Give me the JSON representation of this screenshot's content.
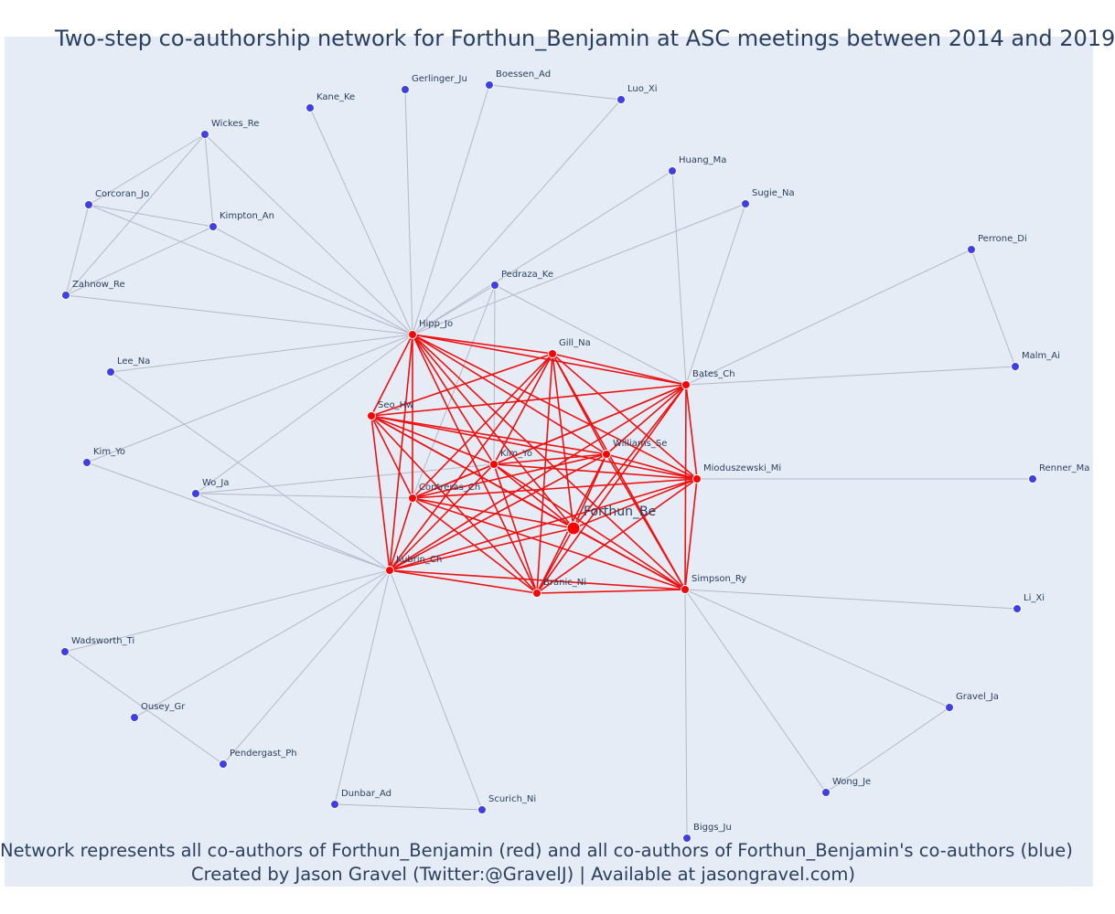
{
  "title": "Two-step co-authorship network for Forthun_Benjamin at ASC meetings between 2014 and 2019",
  "caption": {
    "line1": "Network represents all co-authors of Forthun_Benjamin (red) and all co-authors of Forthun_Benjamin's co-authors (blue)",
    "line2": "Created by Jason Gravel (Twitter:@GravelJ) | Available at jasongravel.com)"
  },
  "colors": {
    "focal": "#ff0000",
    "coauthor": "#ff0000",
    "second_step": "#3f3fe6",
    "red_edge": "#ee1111",
    "grey_edge": "#b4b8c8",
    "background": "#e5ecf6",
    "text": "#2a3f5f"
  },
  "chart_data": {
    "type": "network",
    "nodes": [
      {
        "id": "Forthun_Be",
        "label": "Forthun_Be",
        "group": "focal"
      },
      {
        "id": "Hipp_Jo",
        "label": "Hipp_Jo",
        "group": "coauthor"
      },
      {
        "id": "Gill_Na",
        "label": "Gill_Na",
        "group": "coauthor"
      },
      {
        "id": "Bates_Ch",
        "label": "Bates_Ch",
        "group": "coauthor"
      },
      {
        "id": "Seo_Hw",
        "label": "Seo_Hw",
        "group": "coauthor"
      },
      {
        "id": "Williams_Se",
        "label": "Williams_Se",
        "group": "coauthor"
      },
      {
        "id": "Kim_Yo_red",
        "label": "Kim_Yo",
        "group": "coauthor"
      },
      {
        "id": "Mioduszewski_Mi",
        "label": "Mioduszewski_Mi",
        "group": "coauthor"
      },
      {
        "id": "Contreras_Ch",
        "label": "Contreras_Ch",
        "group": "coauthor"
      },
      {
        "id": "Kubrin_Ch",
        "label": "Kubrin_Ch",
        "group": "coauthor"
      },
      {
        "id": "Branic_Ni",
        "label": "Branic_Ni",
        "group": "coauthor"
      },
      {
        "id": "Simpson_Ry",
        "label": "Simpson_Ry",
        "group": "coauthor"
      },
      {
        "id": "Kane_Ke",
        "label": "Kane_Ke",
        "group": "second"
      },
      {
        "id": "Gerlinger_Ju",
        "label": "Gerlinger_Ju",
        "group": "second"
      },
      {
        "id": "Boessen_Ad",
        "label": "Boessen_Ad",
        "group": "second"
      },
      {
        "id": "Luo_Xi",
        "label": "Luo_Xi",
        "group": "second"
      },
      {
        "id": "Wickes_Re",
        "label": "Wickes_Re",
        "group": "second"
      },
      {
        "id": "Huang_Ma",
        "label": "Huang_Ma",
        "group": "second"
      },
      {
        "id": "Corcoran_Jo",
        "label": "Corcoran_Jo",
        "group": "second"
      },
      {
        "id": "Kimpton_An",
        "label": "Kimpton_An",
        "group": "second"
      },
      {
        "id": "Sugie_Na",
        "label": "Sugie_Na",
        "group": "second"
      },
      {
        "id": "Perrone_Di",
        "label": "Perrone_Di",
        "group": "second"
      },
      {
        "id": "Zahnow_Re",
        "label": "Zahnow_Re",
        "group": "second"
      },
      {
        "id": "Pedraza_Ke",
        "label": "Pedraza_Ke",
        "group": "second"
      },
      {
        "id": "Lee_Na",
        "label": "Lee_Na",
        "group": "second"
      },
      {
        "id": "Malm_Ai",
        "label": "Malm_Ai",
        "group": "second"
      },
      {
        "id": "Kim_Yo_blue",
        "label": "Kim_Yo",
        "group": "second"
      },
      {
        "id": "Wo_Ja",
        "label": "Wo_Ja",
        "group": "second"
      },
      {
        "id": "Renner_Ma",
        "label": "Renner_Ma",
        "group": "second"
      },
      {
        "id": "Li_Xi",
        "label": "Li_Xi",
        "group": "second"
      },
      {
        "id": "Wadsworth_Ti",
        "label": "Wadsworth_Ti",
        "group": "second"
      },
      {
        "id": "Ousey_Gr",
        "label": "Ousey_Gr",
        "group": "second"
      },
      {
        "id": "Gravel_Ja",
        "label": "Gravel_Ja",
        "group": "second"
      },
      {
        "id": "Pendergast_Ph",
        "label": "Pendergast_Ph",
        "group": "second"
      },
      {
        "id": "Wong_Je",
        "label": "Wong_Je",
        "group": "second"
      },
      {
        "id": "Dunbar_Ad",
        "label": "Dunbar_Ad",
        "group": "second"
      },
      {
        "id": "Scurich_Ni",
        "label": "Scurich_Ni",
        "group": "second"
      },
      {
        "id": "Biggs_Ju",
        "label": "Biggs_Ju",
        "group": "second"
      }
    ],
    "red_edges": [
      [
        "Hipp_Jo",
        "Gill_Na"
      ],
      [
        "Hipp_Jo",
        "Bates_Ch"
      ],
      [
        "Hipp_Jo",
        "Seo_Hw"
      ],
      [
        "Hipp_Jo",
        "Williams_Se"
      ],
      [
        "Hipp_Jo",
        "Kim_Yo_red"
      ],
      [
        "Hipp_Jo",
        "Mioduszewski_Mi"
      ],
      [
        "Hipp_Jo",
        "Contreras_Ch"
      ],
      [
        "Hipp_Jo",
        "Kubrin_Ch"
      ],
      [
        "Hipp_Jo",
        "Branic_Ni"
      ],
      [
        "Hipp_Jo",
        "Simpson_Ry"
      ],
      [
        "Hipp_Jo",
        "Forthun_Be"
      ],
      [
        "Gill_Na",
        "Bates_Ch"
      ],
      [
        "Gill_Na",
        "Seo_Hw"
      ],
      [
        "Gill_Na",
        "Williams_Se"
      ],
      [
        "Gill_Na",
        "Kim_Yo_red"
      ],
      [
        "Gill_Na",
        "Mioduszewski_Mi"
      ],
      [
        "Gill_Na",
        "Contreras_Ch"
      ],
      [
        "Gill_Na",
        "Kubrin_Ch"
      ],
      [
        "Gill_Na",
        "Branic_Ni"
      ],
      [
        "Gill_Na",
        "Simpson_Ry"
      ],
      [
        "Gill_Na",
        "Forthun_Be"
      ],
      [
        "Bates_Ch",
        "Seo_Hw"
      ],
      [
        "Bates_Ch",
        "Williams_Se"
      ],
      [
        "Bates_Ch",
        "Kim_Yo_red"
      ],
      [
        "Bates_Ch",
        "Mioduszewski_Mi"
      ],
      [
        "Bates_Ch",
        "Contreras_Ch"
      ],
      [
        "Bates_Ch",
        "Kubrin_Ch"
      ],
      [
        "Bates_Ch",
        "Branic_Ni"
      ],
      [
        "Bates_Ch",
        "Simpson_Ry"
      ],
      [
        "Bates_Ch",
        "Forthun_Be"
      ],
      [
        "Seo_Hw",
        "Williams_Se"
      ],
      [
        "Seo_Hw",
        "Kim_Yo_red"
      ],
      [
        "Seo_Hw",
        "Mioduszewski_Mi"
      ],
      [
        "Seo_Hw",
        "Contreras_Ch"
      ],
      [
        "Seo_Hw",
        "Kubrin_Ch"
      ],
      [
        "Seo_Hw",
        "Branic_Ni"
      ],
      [
        "Seo_Hw",
        "Simpson_Ry"
      ],
      [
        "Seo_Hw",
        "Forthun_Be"
      ],
      [
        "Williams_Se",
        "Kim_Yo_red"
      ],
      [
        "Williams_Se",
        "Mioduszewski_Mi"
      ],
      [
        "Williams_Se",
        "Contreras_Ch"
      ],
      [
        "Williams_Se",
        "Kubrin_Ch"
      ],
      [
        "Williams_Se",
        "Branic_Ni"
      ],
      [
        "Williams_Se",
        "Simpson_Ry"
      ],
      [
        "Williams_Se",
        "Forthun_Be"
      ],
      [
        "Kim_Yo_red",
        "Mioduszewski_Mi"
      ],
      [
        "Kim_Yo_red",
        "Contreras_Ch"
      ],
      [
        "Kim_Yo_red",
        "Kubrin_Ch"
      ],
      [
        "Kim_Yo_red",
        "Branic_Ni"
      ],
      [
        "Kim_Yo_red",
        "Simpson_Ry"
      ],
      [
        "Kim_Yo_red",
        "Forthun_Be"
      ],
      [
        "Mioduszewski_Mi",
        "Contreras_Ch"
      ],
      [
        "Mioduszewski_Mi",
        "Kubrin_Ch"
      ],
      [
        "Mioduszewski_Mi",
        "Branic_Ni"
      ],
      [
        "Mioduszewski_Mi",
        "Simpson_Ry"
      ],
      [
        "Mioduszewski_Mi",
        "Forthun_Be"
      ],
      [
        "Contreras_Ch",
        "Kubrin_Ch"
      ],
      [
        "Contreras_Ch",
        "Branic_Ni"
      ],
      [
        "Contreras_Ch",
        "Simpson_Ry"
      ],
      [
        "Contreras_Ch",
        "Forthun_Be"
      ],
      [
        "Kubrin_Ch",
        "Branic_Ni"
      ],
      [
        "Kubrin_Ch",
        "Simpson_Ry"
      ],
      [
        "Kubrin_Ch",
        "Forthun_Be"
      ],
      [
        "Branic_Ni",
        "Simpson_Ry"
      ],
      [
        "Branic_Ni",
        "Forthun_Be"
      ],
      [
        "Simpson_Ry",
        "Forthun_Be"
      ]
    ],
    "grey_edges": [
      [
        "Hipp_Jo",
        "Kane_Ke"
      ],
      [
        "Hipp_Jo",
        "Gerlinger_Ju"
      ],
      [
        "Hipp_Jo",
        "Boessen_Ad"
      ],
      [
        "Hipp_Jo",
        "Luo_Xi"
      ],
      [
        "Hipp_Jo",
        "Wickes_Re"
      ],
      [
        "Hipp_Jo",
        "Corcoran_Jo"
      ],
      [
        "Hipp_Jo",
        "Kimpton_An"
      ],
      [
        "Hipp_Jo",
        "Zahnow_Re"
      ],
      [
        "Hipp_Jo",
        "Huang_Ma"
      ],
      [
        "Hipp_Jo",
        "Sugie_Na"
      ],
      [
        "Hipp_Jo",
        "Pedraza_Ke"
      ],
      [
        "Hipp_Jo",
        "Lee_Na"
      ],
      [
        "Hipp_Jo",
        "Kim_Yo_blue"
      ],
      [
        "Hipp_Jo",
        "Wo_Ja"
      ],
      [
        "Boessen_Ad",
        "Luo_Xi"
      ],
      [
        "Wickes_Re",
        "Corcoran_Jo"
      ],
      [
        "Wickes_Re",
        "Kimpton_An"
      ],
      [
        "Wickes_Re",
        "Zahnow_Re"
      ],
      [
        "Corcoran_Jo",
        "Kimpton_An"
      ],
      [
        "Corcoran_Jo",
        "Zahnow_Re"
      ],
      [
        "Kimpton_An",
        "Zahnow_Re"
      ],
      [
        "Bates_Ch",
        "Huang_Ma"
      ],
      [
        "Bates_Ch",
        "Sugie_Na"
      ],
      [
        "Bates_Ch",
        "Perrone_Di"
      ],
      [
        "Bates_Ch",
        "Malm_Ai"
      ],
      [
        "Bates_Ch",
        "Pedraza_Ke"
      ],
      [
        "Perrone_Di",
        "Malm_Ai"
      ],
      [
        "Pedraza_Ke",
        "Contreras_Ch"
      ],
      [
        "Pedraza_Ke",
        "Kim_Yo_red"
      ],
      [
        "Mioduszewski_Mi",
        "Renner_Ma"
      ],
      [
        "Kubrin_Ch",
        "Lee_Na"
      ],
      [
        "Kubrin_Ch",
        "Kim_Yo_blue"
      ],
      [
        "Kubrin_Ch",
        "Wo_Ja"
      ],
      [
        "Kubrin_Ch",
        "Wadsworth_Ti"
      ],
      [
        "Kubrin_Ch",
        "Ousey_Gr"
      ],
      [
        "Kubrin_Ch",
        "Pendergast_Ph"
      ],
      [
        "Kubrin_Ch",
        "Dunbar_Ad"
      ],
      [
        "Kubrin_Ch",
        "Scurich_Ni"
      ],
      [
        "Wo_Ja",
        "Contreras_Ch"
      ],
      [
        "Wo_Ja",
        "Kim_Yo_red"
      ],
      [
        "Wadsworth_Ti",
        "Pendergast_Ph"
      ],
      [
        "Dunbar_Ad",
        "Scurich_Ni"
      ],
      [
        "Simpson_Ry",
        "Li_Xi"
      ],
      [
        "Simpson_Ry",
        "Gravel_Ja"
      ],
      [
        "Simpson_Ry",
        "Wong_Je"
      ],
      [
        "Simpson_Ry",
        "Biggs_Ju"
      ],
      [
        "Gravel_Ja",
        "Wong_Je"
      ]
    ]
  }
}
